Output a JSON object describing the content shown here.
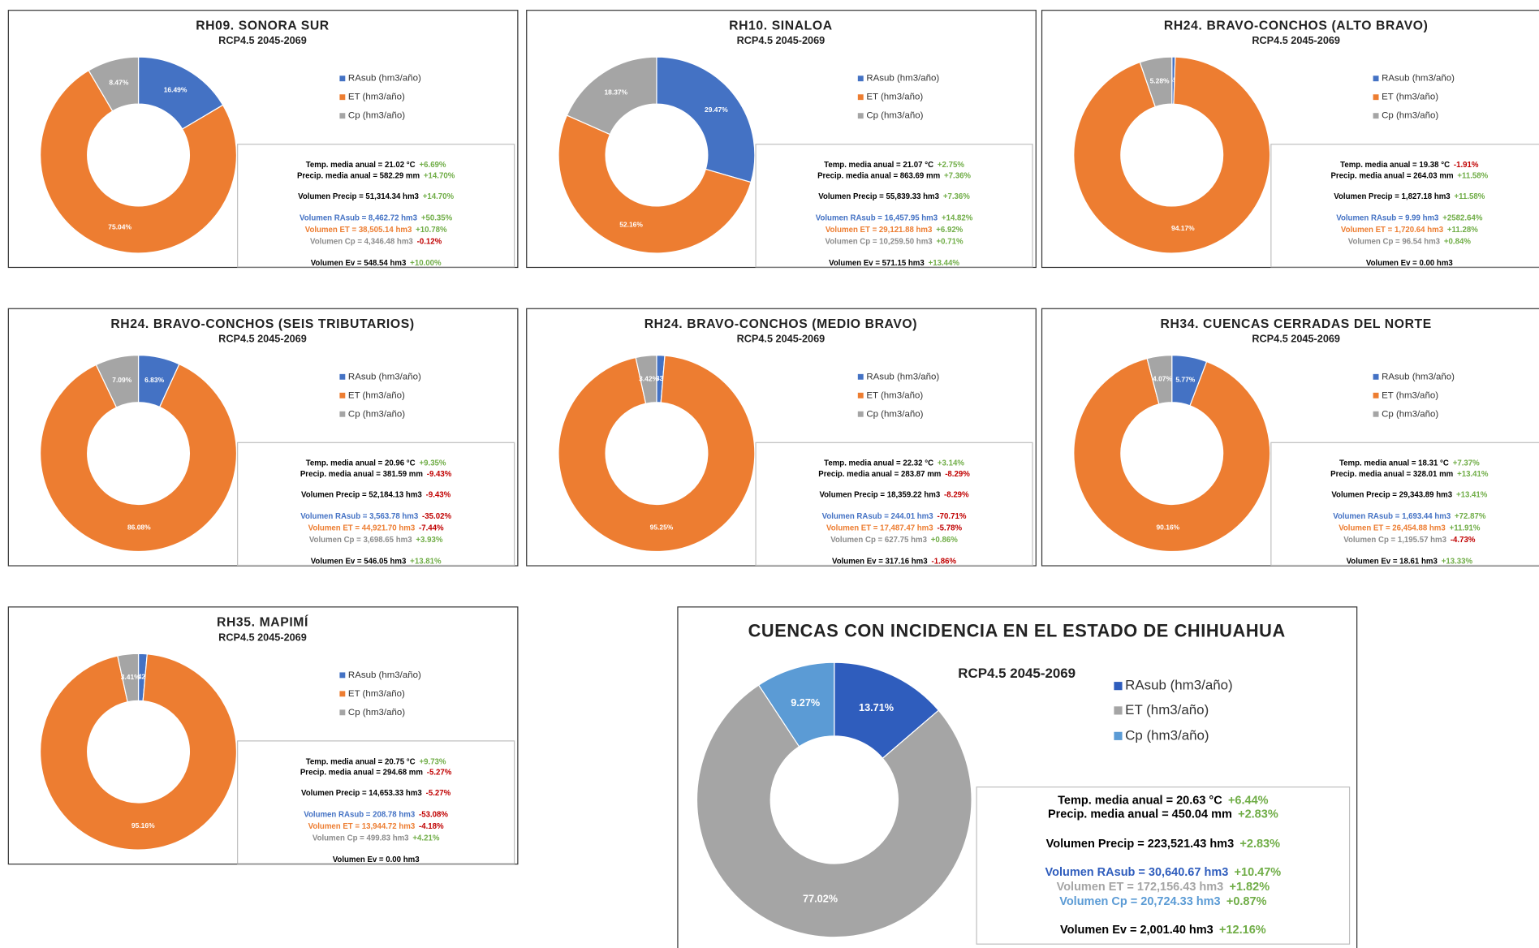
{
  "chart_data": [
    {
      "type": "donut",
      "title": "RH09. SONORA SUR",
      "subtitle": "RCP4.5 2045-2069",
      "categories": [
        "RAsub (hm3/año)",
        "ET (hm3/año)",
        "Cp (hm3/año)"
      ],
      "colors": [
        "#4472c4",
        "#ed7d31",
        "#a5a5a5"
      ],
      "values": [
        16.49,
        75.04,
        8.47
      ],
      "value_labels": [
        "16.49%",
        "75.04%",
        "8.47%"
      ],
      "annotations": [
        {
          "text": "Temp. media anual = 21.02 °C",
          "change": "+6.69%",
          "color": "#000000"
        },
        {
          "text": "Precip. media anual = 582.29 mm",
          "change": "+14.70%",
          "color": "#000000"
        },
        {
          "text": "Volumen Precip = 51,314.34 hm3",
          "change": "+14.70%",
          "color": "#000000"
        },
        {
          "text": "Volumen RAsub = 8,462.72 hm3",
          "change": "+50.35%",
          "color": "#4472c4"
        },
        {
          "text": "Volumen ET = 38,505.14 hm3",
          "change": "+10.78%",
          "color": "#ed7d31"
        },
        {
          "text": "Volumen Cp = 4,346.48 hm3",
          "change": "-0.12%",
          "color": "#8c8c8c"
        },
        {
          "text": "Volumen Ev = 548.54 hm3",
          "change": "+10.00%",
          "color": "#000000"
        }
      ]
    },
    {
      "type": "donut",
      "title": "RH10. SINALOA",
      "subtitle": "RCP4.5 2045-2069",
      "categories": [
        "RAsub (hm3/año)",
        "ET (hm3/año)",
        "Cp (hm3/año)"
      ],
      "colors": [
        "#4472c4",
        "#ed7d31",
        "#a5a5a5"
      ],
      "values": [
        29.47,
        52.16,
        18.37
      ],
      "value_labels": [
        "29.47%",
        "52.16%",
        "18.37%"
      ],
      "annotations": [
        {
          "text": "Temp. media anual = 21.07 °C",
          "change": "+2.75%",
          "color": "#000000"
        },
        {
          "text": "Precip. media anual = 863.69 mm",
          "change": "+7.36%",
          "color": "#000000"
        },
        {
          "text": "Volumen Precip = 55,839.33 hm3",
          "change": "+7.36%",
          "color": "#000000"
        },
        {
          "text": "Volumen RAsub = 16,457.95 hm3",
          "change": "+14.82%",
          "color": "#4472c4"
        },
        {
          "text": "Volumen ET = 29,121.88 hm3",
          "change": "+6.92%",
          "color": "#ed7d31"
        },
        {
          "text": "Volumen Cp = 10,259.50 hm3",
          "change": "+0.71%",
          "color": "#8c8c8c"
        },
        {
          "text": "Volumen Ev = 571.15 hm3",
          "change": "+13.44%",
          "color": "#000000"
        }
      ]
    },
    {
      "type": "donut",
      "title": "RH24. BRAVO-CONCHOS (ALTO BRAVO)",
      "subtitle": "RCP4.5 2045-2069",
      "categories": [
        "RAsub (hm3/año)",
        "ET (hm3/año)",
        "Cp (hm3/año)"
      ],
      "colors": [
        "#4472c4",
        "#ed7d31",
        "#a5a5a5"
      ],
      "values": [
        0.55,
        94.17,
        5.28
      ],
      "value_labels": [
        "0.55%",
        "94.17%",
        "5.28%"
      ],
      "annotations": [
        {
          "text": "Temp. media anual = 19.38 °C",
          "change": "-1.91%",
          "color": "#000000"
        },
        {
          "text": "Precip. media anual = 264.03 mm",
          "change": "+11.58%",
          "color": "#000000"
        },
        {
          "text": "Volumen Precip = 1,827.18 hm3",
          "change": "+11.58%",
          "color": "#000000"
        },
        {
          "text": "Volumen RAsub = 9.99 hm3",
          "change": "+2582.64%",
          "color": "#4472c4"
        },
        {
          "text": "Volumen ET = 1,720.64 hm3",
          "change": "+11.28%",
          "color": "#ed7d31"
        },
        {
          "text": "Volumen Cp = 96.54 hm3",
          "change": "+0.84%",
          "color": "#8c8c8c"
        },
        {
          "text": "Volumen Ev = 0.00 hm3",
          "color": "#000000"
        }
      ]
    },
    {
      "type": "donut",
      "title": "RH24. BRAVO-CONCHOS (SEIS TRIBUTARIOS)",
      "subtitle": "RCP4.5 2045-2069",
      "categories": [
        "RAsub (hm3/año)",
        "ET (hm3/año)",
        "Cp (hm3/año)"
      ],
      "colors": [
        "#4472c4",
        "#ed7d31",
        "#a5a5a5"
      ],
      "values": [
        6.83,
        86.08,
        7.09
      ],
      "value_labels": [
        "6.83%",
        "86.08%",
        "7.09%"
      ],
      "annotations": [
        {
          "text": "Temp. media anual = 20.96 °C",
          "change": "+9.35%",
          "color": "#000000"
        },
        {
          "text": "Precip. media anual = 381.59 mm",
          "change": "-9.43%",
          "color": "#000000"
        },
        {
          "text": "Volumen Precip = 52,184.13 hm3",
          "change": "-9.43%",
          "color": "#000000"
        },
        {
          "text": "Volumen RAsub = 3,563.78 hm3",
          "change": "-35.02%",
          "color": "#4472c4"
        },
        {
          "text": "Volumen ET = 44,921.70 hm3",
          "change": "-7.44%",
          "color": "#ed7d31"
        },
        {
          "text": "Volumen Cp = 3,698.65 hm3",
          "change": "+3.93%",
          "color": "#8c8c8c"
        },
        {
          "text": "Volumen Ev = 546.05 hm3",
          "change": "+13.81%",
          "color": "#000000"
        }
      ]
    },
    {
      "type": "donut",
      "title": "RH24. BRAVO-CONCHOS (MEDIO BRAVO)",
      "subtitle": "RCP4.5 2045-2069",
      "categories": [
        "RAsub (hm3/año)",
        "ET (hm3/año)",
        "Cp (hm3/año)"
      ],
      "colors": [
        "#4472c4",
        "#ed7d31",
        "#a5a5a5"
      ],
      "values": [
        1.33,
        95.25,
        3.42
      ],
      "value_labels": [
        "1.33%",
        "95.25%",
        "3.42%"
      ],
      "annotations": [
        {
          "text": "Temp. media anual = 22.32 °C",
          "change": "+3.14%",
          "color": "#000000"
        },
        {
          "text": "Precip. media anual = 283.87 mm",
          "change": "-8.29%",
          "color": "#000000"
        },
        {
          "text": "Volumen Precip = 18,359.22 hm3",
          "change": "-8.29%",
          "color": "#000000"
        },
        {
          "text": "Volumen RAsub = 244.01 hm3",
          "change": "-70.71%",
          "color": "#4472c4"
        },
        {
          "text": "Volumen ET = 17,487.47 hm3",
          "change": "-5.78%",
          "color": "#ed7d31"
        },
        {
          "text": "Volumen Cp = 627.75 hm3",
          "change": "+0.86%",
          "color": "#8c8c8c"
        },
        {
          "text": "Volumen Ev = 317.16 hm3",
          "change": "-1.86%",
          "color": "#000000"
        }
      ]
    },
    {
      "type": "donut",
      "title": "RH34. CUENCAS CERRADAS DEL NORTE",
      "subtitle": "RCP4.5 2045-2069",
      "categories": [
        "RAsub (hm3/año)",
        "ET (hm3/año)",
        "Cp (hm3/año)"
      ],
      "colors": [
        "#4472c4",
        "#ed7d31",
        "#a5a5a5"
      ],
      "values": [
        5.77,
        90.16,
        4.07
      ],
      "value_labels": [
        "5.77%",
        "90.16%",
        "4.07%"
      ],
      "annotations": [
        {
          "text": "Temp. media anual = 18.31 °C",
          "change": "+7.37%",
          "color": "#000000"
        },
        {
          "text": "Precip. media anual = 328.01 mm",
          "change": "+13.41%",
          "color": "#000000"
        },
        {
          "text": "Volumen Precip = 29,343.89 hm3",
          "change": "+13.41%",
          "color": "#000000"
        },
        {
          "text": "Volumen RAsub = 1,693.44 hm3",
          "change": "+72.87%",
          "color": "#4472c4"
        },
        {
          "text": "Volumen ET = 26,454.88 hm3",
          "change": "+11.91%",
          "color": "#ed7d31"
        },
        {
          "text": "Volumen Cp = 1,195.57 hm3",
          "change": "-4.73%",
          "color": "#8c8c8c"
        },
        {
          "text": "Volumen Ev = 18.61 hm3",
          "change": "+13.33%",
          "color": "#000000"
        }
      ]
    },
    {
      "type": "donut",
      "title": "RH35. MAPIMÍ",
      "subtitle": "RCP4.5 2045-2069",
      "categories": [
        "RAsub (hm3/año)",
        "ET (hm3/año)",
        "Cp (hm3/año)"
      ],
      "colors": [
        "#4472c4",
        "#ed7d31",
        "#a5a5a5"
      ],
      "values": [
        1.42,
        95.16,
        3.41
      ],
      "value_labels": [
        "1.42%",
        "95.16%",
        "3.41%"
      ],
      "annotations": [
        {
          "text": "Temp. media anual = 20.75 °C",
          "change": "+9.73%",
          "color": "#000000"
        },
        {
          "text": "Precip. media anual = 294.68 mm",
          "change": "-5.27%",
          "color": "#000000"
        },
        {
          "text": "Volumen Precip = 14,653.33 hm3",
          "change": "-5.27%",
          "color": "#000000"
        },
        {
          "text": "Volumen RAsub = 208.78 hm3",
          "change": "-53.08%",
          "color": "#4472c4"
        },
        {
          "text": "Volumen ET = 13,944.72 hm3",
          "change": "-4.18%",
          "color": "#ed7d31"
        },
        {
          "text": "Volumen Cp = 499.83 hm3",
          "change": "+4.21%",
          "color": "#8c8c8c"
        },
        {
          "text": "Volumen Ev = 0.00 hm3",
          "color": "#000000"
        }
      ]
    },
    {
      "type": "donut",
      "title": "CUENCAS CON INCIDENCIA EN EL ESTADO DE CHIHUAHUA",
      "subtitle": "RCP4.5 2045-2069",
      "categories": [
        "RAsub (hm3/año)",
        "ET (hm3/año)",
        "Cp (hm3/año)"
      ],
      "colors": [
        "#2f5dbd",
        "#a5a5a5",
        "#5b9bd5"
      ],
      "values": [
        13.71,
        77.02,
        9.27
      ],
      "value_labels": [
        "13.71%",
        "77.02%",
        "9.27%"
      ],
      "annotations": [
        {
          "text": "Temp. media anual = 20.63 °C",
          "change": "+6.44%",
          "color": "#000000"
        },
        {
          "text": "Precip. media anual = 450.04 mm",
          "change": "+2.83%",
          "color": "#000000"
        },
        {
          "text": "Volumen Precip = 223,521.43 hm3",
          "change": "+2.83%",
          "color": "#000000"
        },
        {
          "text": "Volumen RAsub = 30,640.67 hm3",
          "change": "+10.47%",
          "color": "#2f5dbd"
        },
        {
          "text": "Volumen ET = 172,156.43 hm3",
          "change": "+1.82%",
          "color": "#a5a5a5"
        },
        {
          "text": "Volumen Cp = 20,724.33 hm3",
          "change": "+0.87%",
          "color": "#5b9bd5"
        },
        {
          "text": "Volumen Ev = 2,001.40 hm3",
          "change": "+12.16%",
          "color": "#000000"
        }
      ]
    }
  ]
}
